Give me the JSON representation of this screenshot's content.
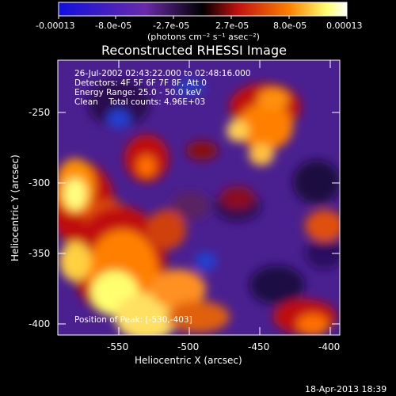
{
  "colorbar": {
    "tick_labels": [
      "-0.00013",
      "-8.0e-05",
      "-2.7e-05",
      "2.7e-05",
      "8.0e-05",
      "0.00013"
    ],
    "unit_label": "(photons cm⁻² s⁻¹ asec⁻²)",
    "colors": [
      "#1010e0",
      "#7030b0",
      "#000000",
      "#c01010",
      "#ff8000",
      "#ffff80",
      "#ffffff"
    ]
  },
  "title": "Reconstructed RHESSI Image",
  "overlay": {
    "time_range": "26-Jul-2002 02:43:22.000 to 02:48:16.000",
    "detectors": "Detectors: 4F 5F 6F 7F 8F, Att 0",
    "energy": "Energy Range: 25.0 - 50.0 keV",
    "method": "Clean    Total counts: 4.96E+03",
    "peak": "Position of Peak: [-530,-403]"
  },
  "x_axis": {
    "label": "Heliocentric X (arcsec)",
    "ticks": [
      "-550",
      "-500",
      "-450",
      "-400"
    ]
  },
  "y_axis": {
    "label": "Heliocentric Y (arcsec)",
    "ticks": [
      "-250",
      "-300",
      "-350",
      "-400"
    ]
  },
  "footer_timestamp": "18-Apr-2013 18:39"
}
